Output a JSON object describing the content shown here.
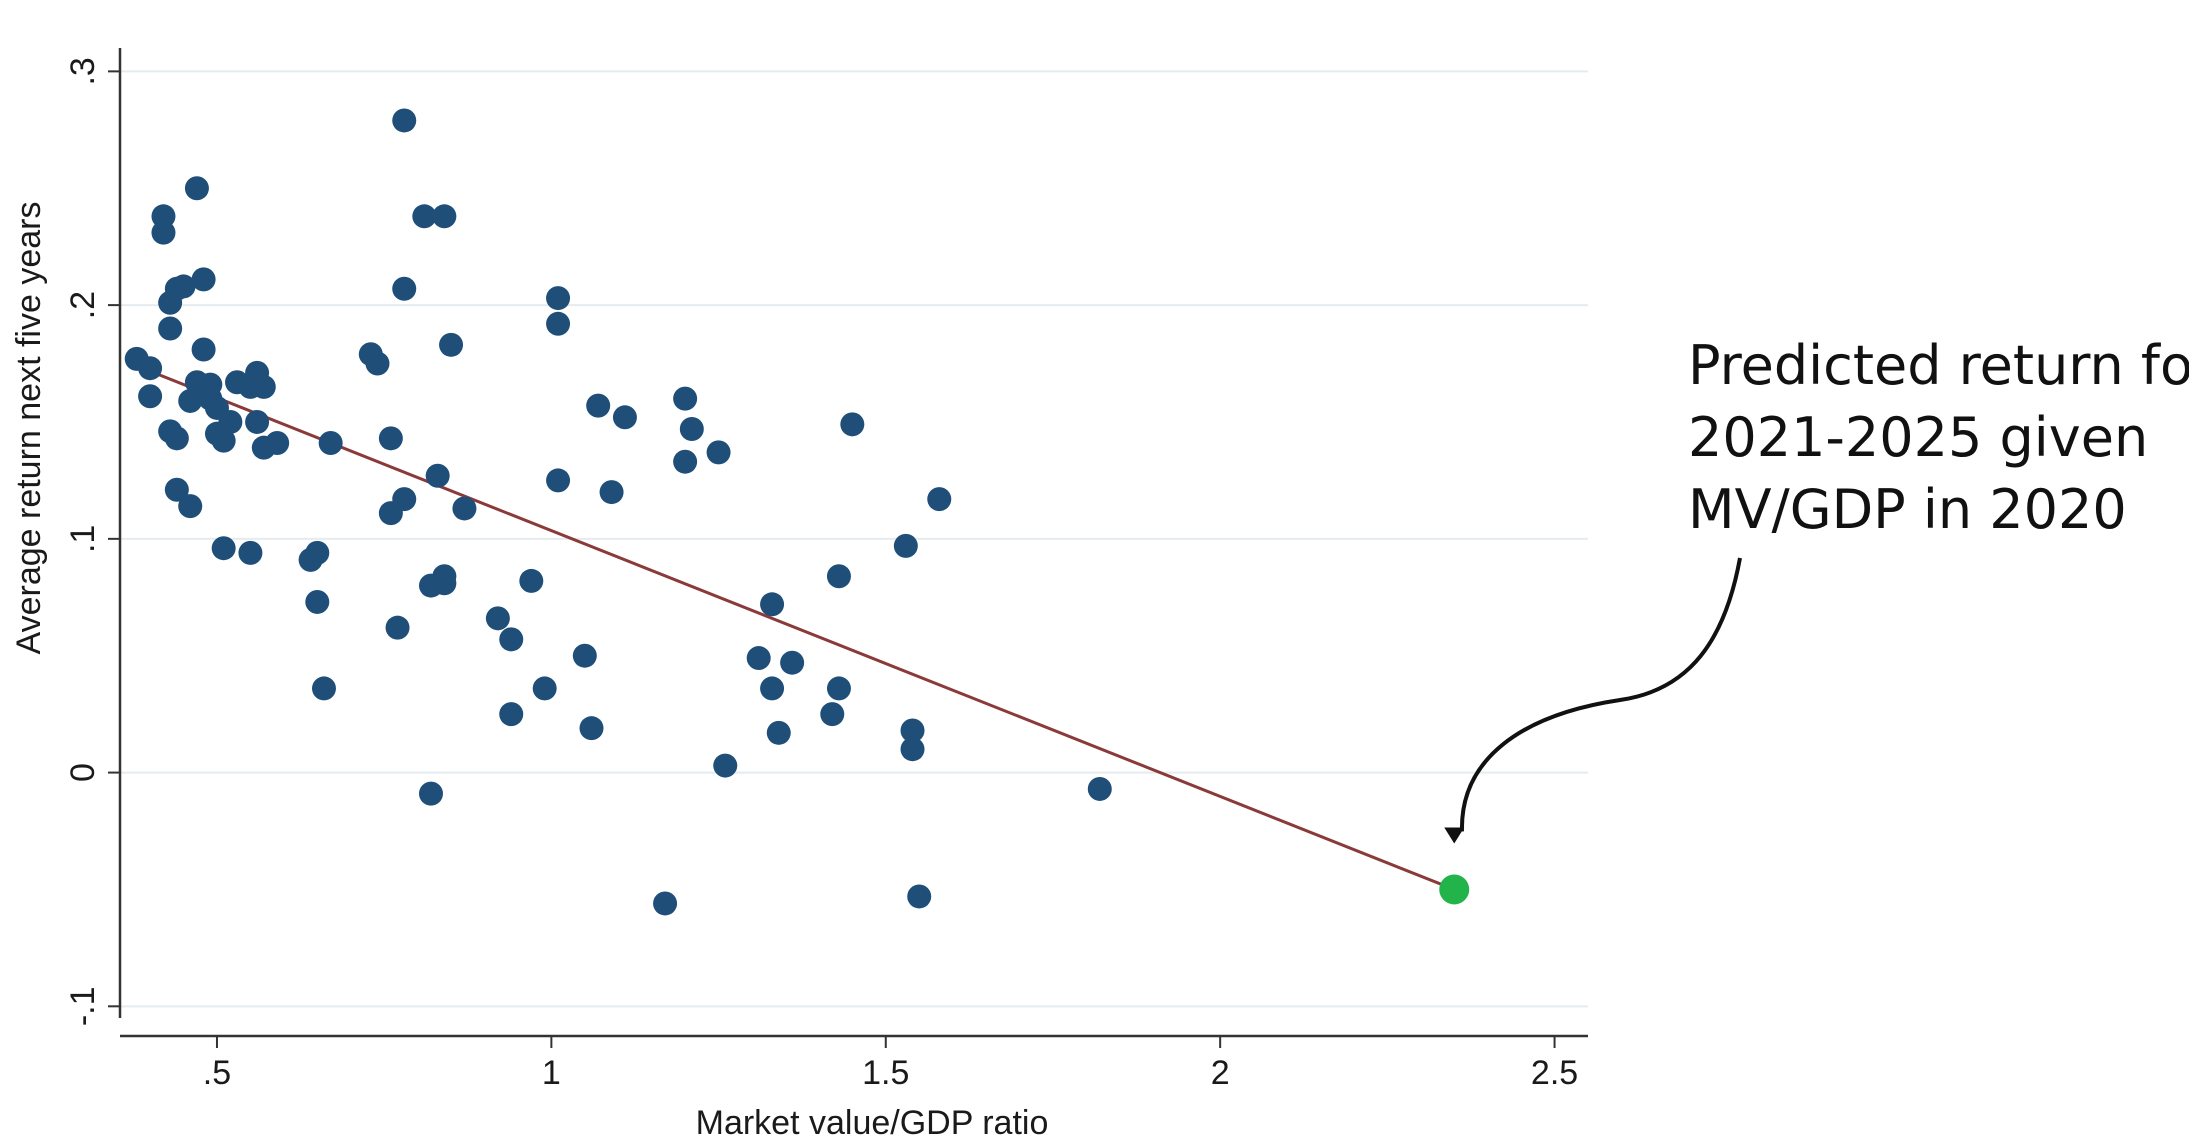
{
  "chart_data": {
    "type": "scatter",
    "title": "",
    "xlabel": "Market value/GDP ratio",
    "ylabel": "Average return next five years",
    "xlim": [
      0.355,
      2.55
    ],
    "ylim": [
      -0.105,
      0.31
    ],
    "x_ticks": [
      0.5,
      1,
      1.5,
      2,
      2.5
    ],
    "x_tick_labels": [
      ".5",
      "1",
      "1.5",
      "2",
      "2.5"
    ],
    "y_ticks": [
      -0.1,
      0,
      0.1,
      0.2,
      0.3
    ],
    "y_tick_labels": [
      "-.1",
      "0",
      ".1",
      ".2",
      ".3"
    ],
    "grid": true,
    "point_color": "#1f4e79",
    "fit_color": "#8b3a3a",
    "highlight_color": "#22b34a",
    "points": [
      {
        "x": 0.38,
        "y": 0.177
      },
      {
        "x": 0.4,
        "y": 0.173
      },
      {
        "x": 0.4,
        "y": 0.161
      },
      {
        "x": 0.42,
        "y": 0.231
      },
      {
        "x": 0.42,
        "y": 0.238
      },
      {
        "x": 0.43,
        "y": 0.201
      },
      {
        "x": 0.43,
        "y": 0.19
      },
      {
        "x": 0.44,
        "y": 0.207
      },
      {
        "x": 0.45,
        "y": 0.208
      },
      {
        "x": 0.43,
        "y": 0.146
      },
      {
        "x": 0.44,
        "y": 0.143
      },
      {
        "x": 0.44,
        "y": 0.121
      },
      {
        "x": 0.46,
        "y": 0.114
      },
      {
        "x": 0.46,
        "y": 0.159
      },
      {
        "x": 0.47,
        "y": 0.167
      },
      {
        "x": 0.47,
        "y": 0.25
      },
      {
        "x": 0.48,
        "y": 0.211
      },
      {
        "x": 0.48,
        "y": 0.181
      },
      {
        "x": 0.49,
        "y": 0.166
      },
      {
        "x": 0.49,
        "y": 0.16
      },
      {
        "x": 0.5,
        "y": 0.156
      },
      {
        "x": 0.5,
        "y": 0.145
      },
      {
        "x": 0.51,
        "y": 0.142
      },
      {
        "x": 0.52,
        "y": 0.15
      },
      {
        "x": 0.51,
        "y": 0.096
      },
      {
        "x": 0.53,
        "y": 0.167
      },
      {
        "x": 0.55,
        "y": 0.165
      },
      {
        "x": 0.56,
        "y": 0.171
      },
      {
        "x": 0.56,
        "y": 0.15
      },
      {
        "x": 0.57,
        "y": 0.165
      },
      {
        "x": 0.57,
        "y": 0.139
      },
      {
        "x": 0.59,
        "y": 0.141
      },
      {
        "x": 0.55,
        "y": 0.094
      },
      {
        "x": 0.64,
        "y": 0.091
      },
      {
        "x": 0.65,
        "y": 0.094
      },
      {
        "x": 0.65,
        "y": 0.073
      },
      {
        "x": 0.66,
        "y": 0.036
      },
      {
        "x": 0.67,
        "y": 0.141
      },
      {
        "x": 0.73,
        "y": 0.179
      },
      {
        "x": 0.74,
        "y": 0.175
      },
      {
        "x": 0.76,
        "y": 0.143
      },
      {
        "x": 0.76,
        "y": 0.111
      },
      {
        "x": 0.77,
        "y": 0.062
      },
      {
        "x": 0.78,
        "y": 0.117
      },
      {
        "x": 0.78,
        "y": 0.207
      },
      {
        "x": 0.78,
        "y": 0.279
      },
      {
        "x": 0.81,
        "y": 0.238
      },
      {
        "x": 0.82,
        "y": 0.08
      },
      {
        "x": 0.82,
        "y": -0.009
      },
      {
        "x": 0.83,
        "y": 0.127
      },
      {
        "x": 0.84,
        "y": 0.238
      },
      {
        "x": 0.84,
        "y": 0.084
      },
      {
        "x": 0.84,
        "y": 0.081
      },
      {
        "x": 0.85,
        "y": 0.183
      },
      {
        "x": 0.87,
        "y": 0.113
      },
      {
        "x": 0.92,
        "y": 0.066
      },
      {
        "x": 0.94,
        "y": 0.057
      },
      {
        "x": 0.94,
        "y": 0.025
      },
      {
        "x": 0.97,
        "y": 0.082
      },
      {
        "x": 0.99,
        "y": 0.036
      },
      {
        "x": 1.01,
        "y": 0.203
      },
      {
        "x": 1.01,
        "y": 0.192
      },
      {
        "x": 1.01,
        "y": 0.125
      },
      {
        "x": 1.05,
        "y": 0.05
      },
      {
        "x": 1.06,
        "y": 0.019
      },
      {
        "x": 1.07,
        "y": 0.157
      },
      {
        "x": 1.09,
        "y": 0.12
      },
      {
        "x": 1.11,
        "y": 0.152
      },
      {
        "x": 1.17,
        "y": -0.056
      },
      {
        "x": 1.2,
        "y": 0.16
      },
      {
        "x": 1.2,
        "y": 0.133
      },
      {
        "x": 1.21,
        "y": 0.147
      },
      {
        "x": 1.25,
        "y": 0.137
      },
      {
        "x": 1.26,
        "y": 0.003
      },
      {
        "x": 1.31,
        "y": 0.049
      },
      {
        "x": 1.33,
        "y": 0.072
      },
      {
        "x": 1.33,
        "y": 0.036
      },
      {
        "x": 1.34,
        "y": 0.017
      },
      {
        "x": 1.36,
        "y": 0.047
      },
      {
        "x": 1.42,
        "y": 0.025
      },
      {
        "x": 1.43,
        "y": 0.084
      },
      {
        "x": 1.43,
        "y": 0.036
      },
      {
        "x": 1.45,
        "y": 0.149
      },
      {
        "x": 1.53,
        "y": 0.097
      },
      {
        "x": 1.54,
        "y": 0.018
      },
      {
        "x": 1.54,
        "y": 0.01
      },
      {
        "x": 1.55,
        "y": -0.053
      },
      {
        "x": 1.58,
        "y": 0.117
      },
      {
        "x": 1.82,
        "y": -0.007
      }
    ],
    "fit_line": {
      "x1": 0.38,
      "y1": 0.174,
      "x2": 2.35,
      "y2": -0.05
    },
    "highlight_point": {
      "x": 2.35,
      "y": -0.05
    },
    "annotation": {
      "lines": [
        "Predicted return for",
        "2021-2025 given",
        "MV/GDP in 2020"
      ]
    }
  }
}
